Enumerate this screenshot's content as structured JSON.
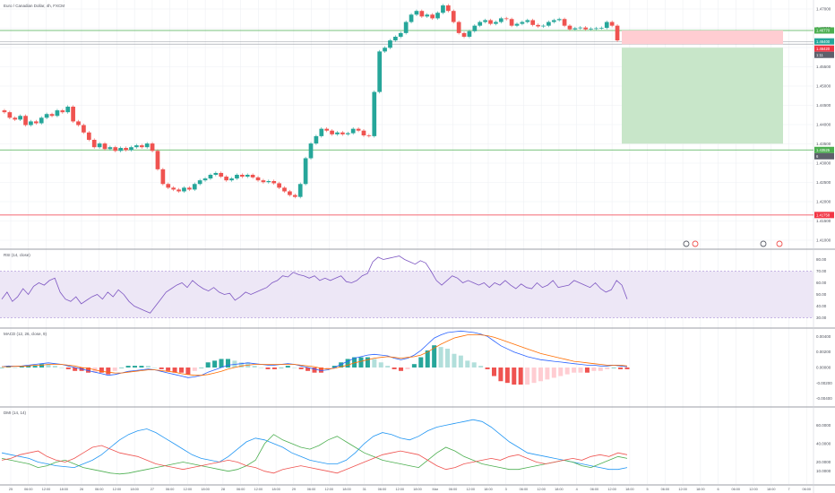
{
  "theme": {
    "bg": "#ffffff",
    "grid": "#eef0f3",
    "text": "#50535e",
    "separator": "#7a7e88",
    "up": "#26a69a",
    "down": "#ef5350",
    "ma_fast": "#2962ff",
    "ma_slow": "#ff6d00",
    "rsi_line": "#7e57c2",
    "rsi_band": "#ede7f6",
    "green_line": "#4caf50",
    "red_line": "#f23645",
    "profit_zone": "#c8e6c9",
    "loss_zone": "#ffcdd2",
    "dmi_plus": "#4caf50",
    "dmi_minus": "#ef5350",
    "adx": "#2196f3"
  },
  "price_panel": {
    "title": "Euro / Canadian Dollar, 4h, FXCM",
    "axis_ticks": [
      "1.47000",
      "1.46500",
      "1.46000",
      "1.45500",
      "1.45000",
      "1.44500",
      "1.44000",
      "1.43500",
      "1.43000",
      "1.42500",
      "1.42000",
      "1.41500",
      "1.41000"
    ],
    "levels": {
      "upper_green": "1.46770",
      "current_price": "1.46400",
      "stop_level": "1.46420",
      "current_small": "1:11",
      "lower_green": "1.43525",
      "lower_label_small": "6",
      "red_level": "1.41758"
    }
  },
  "rsi_panel": {
    "title": "RSI (14, close)",
    "axis_ticks": [
      "80.00",
      "70.00",
      "60.00",
      "50.00",
      "40.00",
      "30.00"
    ]
  },
  "macd_panel": {
    "title": "MACD (12, 26, close, 9)",
    "axis_ticks": [
      "0.00400",
      "0.00200",
      "0.00000",
      "-0.00200",
      "-0.00400"
    ]
  },
  "dmi_panel": {
    "title": "DMI (14, 14)",
    "axis_ticks": [
      "60.0000",
      "40.0000",
      "20.0000",
      "10.0000"
    ]
  },
  "time_axis": [
    "25",
    "06:00",
    "12:00",
    "18:00",
    "26",
    "06:00",
    "12:00",
    "18:00",
    "27",
    "06:00",
    "12:00",
    "18:00",
    "28",
    "06:00",
    "12:00",
    "18:00",
    "29",
    "06:00",
    "12:00",
    "18:00",
    "31",
    "06:00",
    "12:00",
    "18:00",
    "Mar",
    "06:00",
    "12:00",
    "18:00",
    "3",
    "06:00",
    "12:00",
    "18:00",
    "4",
    "06:00",
    "12:00",
    "18:00",
    "5",
    "06:00",
    "12:00",
    "18:00",
    "6",
    "06:00",
    "12:00",
    "18:00",
    "7",
    "06:00"
  ],
  "chart_data": [
    {
      "type": "candlestick",
      "title": "Euro / Canadian Dollar, 4h, FXCM",
      "ylim": [
        1.41,
        1.475
      ],
      "closes": [
        1.4455,
        1.444,
        1.4435,
        1.4445,
        1.442,
        1.443,
        1.4425,
        1.444,
        1.445,
        1.4445,
        1.446,
        1.4455,
        1.447,
        1.443,
        1.442,
        1.44,
        1.438,
        1.436,
        1.437,
        1.4355,
        1.436,
        1.435,
        1.4358,
        1.4352,
        1.436,
        1.4365,
        1.436,
        1.437,
        1.435,
        1.43,
        1.426,
        1.425,
        1.4245,
        1.424,
        1.425,
        1.4245,
        1.426,
        1.427,
        1.4275,
        1.4285,
        1.429,
        1.428,
        1.427,
        1.4275,
        1.4285,
        1.428,
        1.4285,
        1.4278,
        1.427,
        1.4265,
        1.4268,
        1.4262,
        1.425,
        1.424,
        1.423,
        1.4225,
        1.426,
        1.433,
        1.437,
        1.439,
        1.441,
        1.4405,
        1.4395,
        1.44,
        1.4395,
        1.4398,
        1.441,
        1.4405,
        1.4392,
        1.439,
        1.451,
        1.462,
        1.463,
        1.465,
        1.466,
        1.467,
        1.47,
        1.472,
        1.473,
        1.4715,
        1.472,
        1.471,
        1.4725,
        1.4745,
        1.473,
        1.47,
        1.467,
        1.466,
        1.4675,
        1.469,
        1.47,
        1.4705,
        1.4695,
        1.47,
        1.471,
        1.4708,
        1.469,
        1.4695,
        1.47,
        1.4705,
        1.4692,
        1.4688,
        1.469,
        1.47,
        1.4705,
        1.4708,
        1.469,
        1.468,
        1.4683,
        1.4685,
        1.468,
        1.4682,
        1.4683,
        1.4684,
        1.47,
        1.469,
        1.465
      ],
      "levels": {
        "upper_green": 1.4677,
        "current": 1.464,
        "stop": 1.4642,
        "lower_green": 1.43525,
        "red": 1.41758
      }
    },
    {
      "type": "line",
      "title": "RSI (14, close)",
      "ylim": [
        25,
        85
      ],
      "band": [
        30,
        70
      ],
      "values": [
        46,
        52,
        44,
        48,
        55,
        50,
        57,
        60,
        58,
        62,
        64,
        52,
        46,
        44,
        48,
        42,
        45,
        48,
        50,
        46,
        52,
        48,
        54,
        50,
        44,
        40,
        38,
        36,
        34,
        40,
        46,
        52,
        55,
        58,
        60,
        56,
        62,
        58,
        55,
        53,
        56,
        52,
        50,
        51,
        45,
        48,
        52,
        50,
        52,
        54,
        56,
        60,
        62,
        66,
        65,
        69,
        67,
        66,
        64,
        66,
        62,
        64,
        62,
        64,
        66,
        61,
        60,
        62,
        66,
        68,
        78,
        82,
        80,
        81,
        82,
        83,
        80,
        78,
        76,
        79,
        77,
        70,
        62,
        58,
        62,
        66,
        64,
        60,
        62,
        60,
        58,
        60,
        56,
        60,
        58,
        62,
        58,
        55,
        59,
        56,
        55,
        60,
        56,
        58,
        62,
        56,
        57,
        58,
        62,
        60,
        58,
        56,
        60,
        55,
        52,
        54,
        62,
        58,
        46
      ]
    },
    {
      "type": "line",
      "title": "MACD (12, 26, close, 9)",
      "ylim": [
        -0.0045,
        0.0045
      ],
      "series": [
        {
          "name": "MACD",
          "values": [
            0.0001,
            0.0002,
            0.00015,
            0.0002,
            0.0003,
            0.0004,
            0.0005,
            0.0006,
            0.0005,
            0.0004,
            0.0002,
            0.0,
            -0.0002,
            -0.0004,
            -0.0006,
            -0.0008,
            -0.001,
            -0.0009,
            -0.0007,
            -0.0005,
            -0.0004,
            -0.0003,
            -0.0002,
            -0.0003,
            -0.0005,
            -0.0007,
            -0.0009,
            -0.0011,
            -0.0013,
            -0.0012,
            -0.001,
            -0.0006,
            -0.0003,
            0.0,
            0.0003,
            0.0004,
            0.0005,
            0.0006,
            0.0005,
            0.0004,
            0.0003,
            0.0003,
            0.0004,
            0.0005,
            0.0004,
            0.0002,
            0.0,
            -0.0002,
            -0.0004,
            -0.0003,
            0.0,
            0.0004,
            0.0008,
            0.0012,
            0.0014,
            0.0016,
            0.0017,
            0.0016,
            0.0015,
            0.0012,
            0.001,
            0.0012,
            0.0016,
            0.0022,
            0.003,
            0.0038,
            0.0042,
            0.0045,
            0.0046,
            0.0047,
            0.0046,
            0.0045,
            0.0043,
            0.004,
            0.0034,
            0.0028,
            0.0024,
            0.002,
            0.0017,
            0.0014,
            0.0012,
            0.001,
            0.0009,
            0.0008,
            0.0007,
            0.0006,
            0.0005,
            0.0004,
            0.0003,
            0.0003,
            0.0002,
            0.0002,
            0.0003,
            0.0002,
            0.0001
          ]
        },
        {
          "name": "Signal",
          "values": [
            0.0001,
            0.0001,
            0.00015,
            0.00015,
            0.0002,
            0.0003,
            0.0003,
            0.0004,
            0.0004,
            0.0004,
            0.0003,
            0.0002,
            0.0,
            -0.0001,
            -0.0003,
            -0.0005,
            -0.0006,
            -0.0007,
            -0.0007,
            -0.0006,
            -0.0005,
            -0.0004,
            -0.0003,
            -0.0003,
            -0.0004,
            -0.0005,
            -0.0006,
            -0.0008,
            -0.0009,
            -0.001,
            -0.001,
            -0.0009,
            -0.0007,
            -0.0005,
            -0.0002,
            0.0,
            0.0002,
            0.0003,
            0.0004,
            0.0004,
            0.0004,
            0.0004,
            0.0004,
            0.0004,
            0.0004,
            0.0003,
            0.0002,
            0.0001,
            -0.0001,
            -0.0002,
            -0.0001,
            0.0001,
            0.0003,
            0.0006,
            0.0008,
            0.001,
            0.0012,
            0.0013,
            0.0014,
            0.0013,
            0.0012,
            0.0013,
            0.0014,
            0.0016,
            0.002,
            0.0025,
            0.003,
            0.0034,
            0.0038,
            0.004,
            0.0042,
            0.0042,
            0.0042,
            0.0041,
            0.0039,
            0.0036,
            0.0033,
            0.003,
            0.0027,
            0.0024,
            0.0021,
            0.0018,
            0.0016,
            0.0014,
            0.0012,
            0.001,
            0.0008,
            0.0007,
            0.0006,
            0.0005,
            0.0004,
            0.0003,
            0.0003,
            0.0003,
            0.0002
          ]
        }
      ]
    },
    {
      "type": "line",
      "title": "DMI (14, 14)",
      "ylim": [
        0,
        75
      ],
      "series": [
        {
          "name": "ADX",
          "values": [
            30,
            28,
            26,
            24,
            20,
            18,
            16,
            15,
            14,
            18,
            22,
            28,
            36,
            44,
            50,
            54,
            56,
            52,
            46,
            40,
            34,
            28,
            24,
            22,
            20,
            26,
            34,
            42,
            46,
            44,
            40,
            36,
            30,
            26,
            22,
            20,
            18,
            18,
            22,
            30,
            40,
            48,
            52,
            50,
            46,
            44,
            48,
            54,
            58,
            60,
            62,
            64,
            66,
            64,
            58,
            50,
            42,
            36,
            30,
            28,
            26,
            24,
            22,
            20,
            18,
            16,
            14,
            12,
            12,
            14
          ]
        },
        {
          "name": "+DI",
          "values": [
            24,
            22,
            20,
            18,
            14,
            16,
            20,
            22,
            18,
            14,
            12,
            10,
            8,
            7,
            8,
            10,
            12,
            14,
            16,
            18,
            20,
            18,
            16,
            14,
            12,
            10,
            12,
            16,
            22,
            40,
            50,
            44,
            40,
            36,
            34,
            38,
            44,
            48,
            42,
            36,
            30,
            26,
            22,
            20,
            18,
            16,
            14,
            22,
            30,
            36,
            32,
            26,
            22,
            18,
            16,
            14,
            12,
            12,
            14,
            16,
            18,
            20,
            22,
            20,
            16,
            14,
            18,
            22,
            26,
            24
          ]
        },
        {
          "name": "-DI",
          "values": [
            22,
            24,
            28,
            30,
            32,
            26,
            22,
            20,
            24,
            30,
            36,
            38,
            34,
            30,
            28,
            26,
            22,
            18,
            16,
            14,
            12,
            14,
            16,
            18,
            20,
            22,
            20,
            16,
            14,
            10,
            8,
            12,
            14,
            16,
            14,
            12,
            10,
            8,
            12,
            16,
            20,
            24,
            28,
            30,
            32,
            30,
            28,
            22,
            16,
            12,
            14,
            18,
            20,
            22,
            24,
            22,
            26,
            28,
            24,
            20,
            18,
            20,
            22,
            24,
            22,
            26,
            28,
            26,
            30,
            28
          ]
        }
      ]
    }
  ]
}
